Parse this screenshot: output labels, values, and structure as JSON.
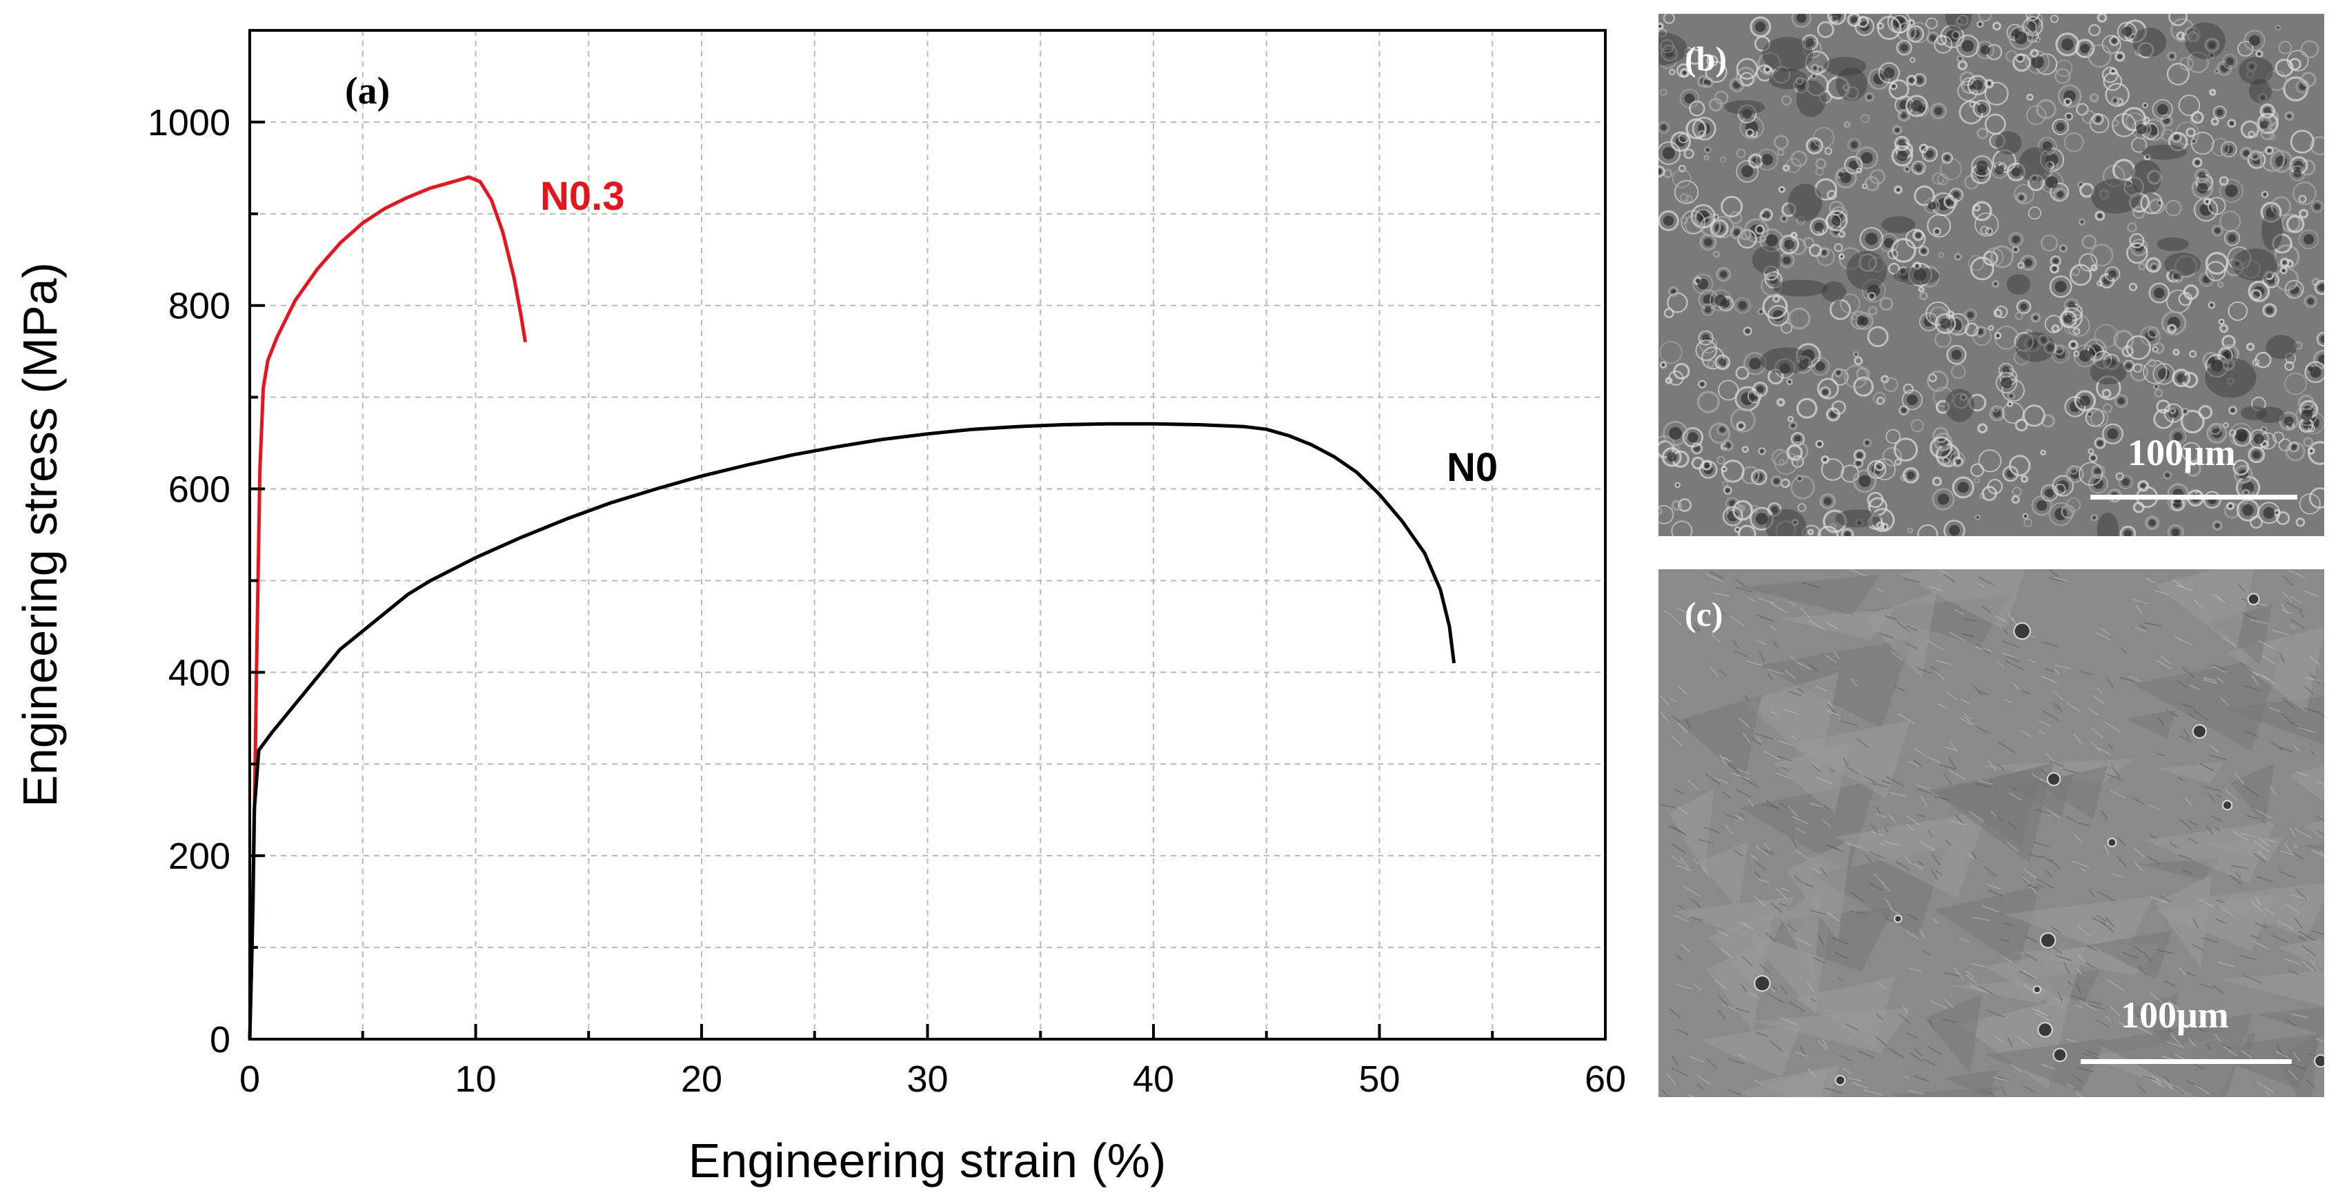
{
  "chart_data": {
    "type": "line",
    "panel_label": "(a)",
    "xlabel": "Engineering strain (%)",
    "ylabel": "Engineering stress (MPa)",
    "xlim": [
      0,
      60
    ],
    "ylim": [
      0,
      1100
    ],
    "xticks": [
      0,
      10,
      20,
      30,
      40,
      50,
      60
    ],
    "yticks": [
      0,
      200,
      400,
      600,
      800,
      1000
    ],
    "grid": true,
    "series": [
      {
        "name": "N0.3",
        "color": "#e8141c",
        "points": [
          [
            0.0,
            0
          ],
          [
            0.15,
            150
          ],
          [
            0.3,
            400
          ],
          [
            0.45,
            620
          ],
          [
            0.6,
            710
          ],
          [
            0.8,
            740
          ],
          [
            1.2,
            765
          ],
          [
            2.0,
            805
          ],
          [
            3.0,
            840
          ],
          [
            4.0,
            868
          ],
          [
            5.0,
            890
          ],
          [
            6.0,
            906
          ],
          [
            7.0,
            918
          ],
          [
            8.0,
            928
          ],
          [
            9.0,
            935
          ],
          [
            9.7,
            940
          ],
          [
            10.2,
            935
          ],
          [
            10.7,
            915
          ],
          [
            11.2,
            880
          ],
          [
            11.7,
            830
          ],
          [
            12.0,
            790
          ],
          [
            12.2,
            760
          ]
        ]
      },
      {
        "name": "N0",
        "color": "#000000",
        "points": [
          [
            0.0,
            0
          ],
          [
            0.1,
            100
          ],
          [
            0.2,
            250
          ],
          [
            0.4,
            315
          ],
          [
            1.0,
            335
          ],
          [
            2.0,
            365
          ],
          [
            3.0,
            395
          ],
          [
            4.0,
            425
          ],
          [
            5.0,
            445
          ],
          [
            6.0,
            465
          ],
          [
            7.0,
            485
          ],
          [
            8.0,
            500
          ],
          [
            10.0,
            525
          ],
          [
            12.0,
            547
          ],
          [
            14.0,
            567
          ],
          [
            16.0,
            585
          ],
          [
            18.0,
            600
          ],
          [
            20.0,
            614
          ],
          [
            22.0,
            626
          ],
          [
            24.0,
            637
          ],
          [
            26.0,
            646
          ],
          [
            28.0,
            654
          ],
          [
            30.0,
            660
          ],
          [
            32.0,
            665
          ],
          [
            34.0,
            668
          ],
          [
            36.0,
            670
          ],
          [
            38.0,
            671
          ],
          [
            40.0,
            671
          ],
          [
            42.0,
            670
          ],
          [
            44.0,
            668
          ],
          [
            45.0,
            665
          ],
          [
            46.0,
            658
          ],
          [
            47.0,
            648
          ],
          [
            48.0,
            635
          ],
          [
            49.0,
            618
          ],
          [
            50.0,
            594
          ],
          [
            51.0,
            565
          ],
          [
            52.0,
            530
          ],
          [
            52.7,
            490
          ],
          [
            53.1,
            450
          ],
          [
            53.3,
            410
          ]
        ]
      }
    ]
  },
  "micrographs": [
    {
      "panel_label": "(b)",
      "scale_text": "100μm",
      "fill": "#6f6f6f"
    },
    {
      "panel_label": "(c)",
      "scale_text": "100μm",
      "fill": "#858585"
    }
  ]
}
